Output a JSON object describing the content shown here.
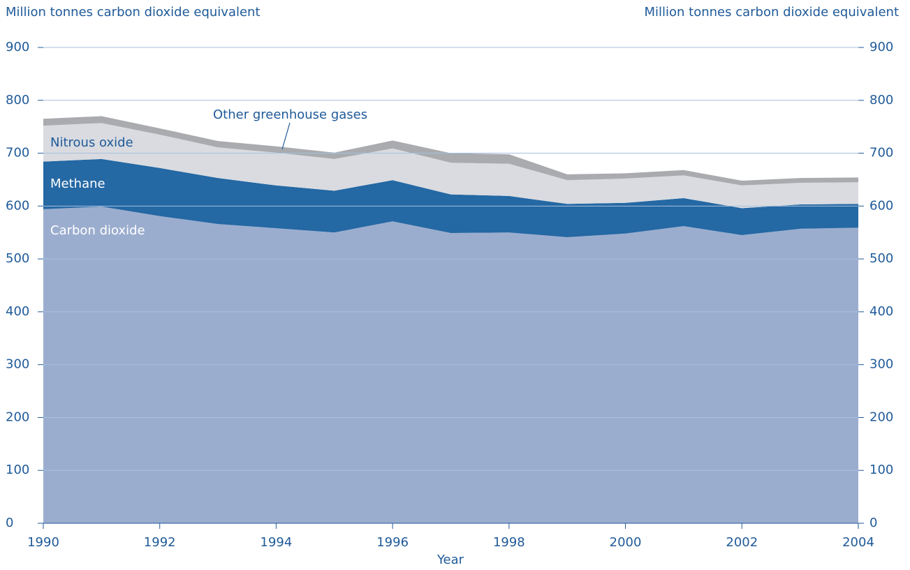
{
  "chart_data": {
    "type": "stacked_area",
    "y_label": "Million tonnes carbon dioxide equivalent",
    "y2_label": "Million tonnes carbon dioxide equivalent",
    "x_label": "Year",
    "x": [
      1990,
      1991,
      1992,
      1993,
      1994,
      1995,
      1996,
      1997,
      1998,
      1999,
      2000,
      2001,
      2002,
      2003,
      2004
    ],
    "series": [
      {
        "name": "Carbon dioxide",
        "color": "#9badce",
        "values": [
          594,
          599,
          581,
          566,
          558,
          550,
          571,
          549,
          550,
          541,
          548,
          562,
          545,
          557,
          559
        ]
      },
      {
        "name": "Methane",
        "color": "#2468a4",
        "values": [
          90,
          90,
          91,
          87,
          81,
          79,
          78,
          73,
          69,
          63,
          58,
          53,
          51,
          46,
          45
        ]
      },
      {
        "name": "Nitrous oxide",
        "color": "#d9dbe0",
        "values": [
          68,
          68,
          63,
          58,
          62,
          60,
          60,
          60,
          61,
          45,
          46,
          43,
          43,
          41,
          41
        ]
      },
      {
        "name": "Other greenhouse gases",
        "color": "#a9abae",
        "values": [
          13,
          13,
          12,
          12,
          12,
          12,
          15,
          18,
          18,
          11,
          10,
          10,
          9,
          9,
          9
        ]
      }
    ],
    "xlim": [
      1990,
      2004
    ],
    "xticks": [
      1990,
      1992,
      1994,
      1996,
      1998,
      2000,
      2002,
      2004
    ],
    "ylim": [
      0,
      900
    ],
    "yticks": [
      0,
      100,
      200,
      300,
      400,
      500,
      600,
      700,
      800,
      900
    ],
    "y2lim": [
      0,
      900
    ],
    "y2ticks": [
      0,
      100,
      200,
      300,
      400,
      500,
      600,
      700,
      800,
      900
    ],
    "grid": true
  }
}
